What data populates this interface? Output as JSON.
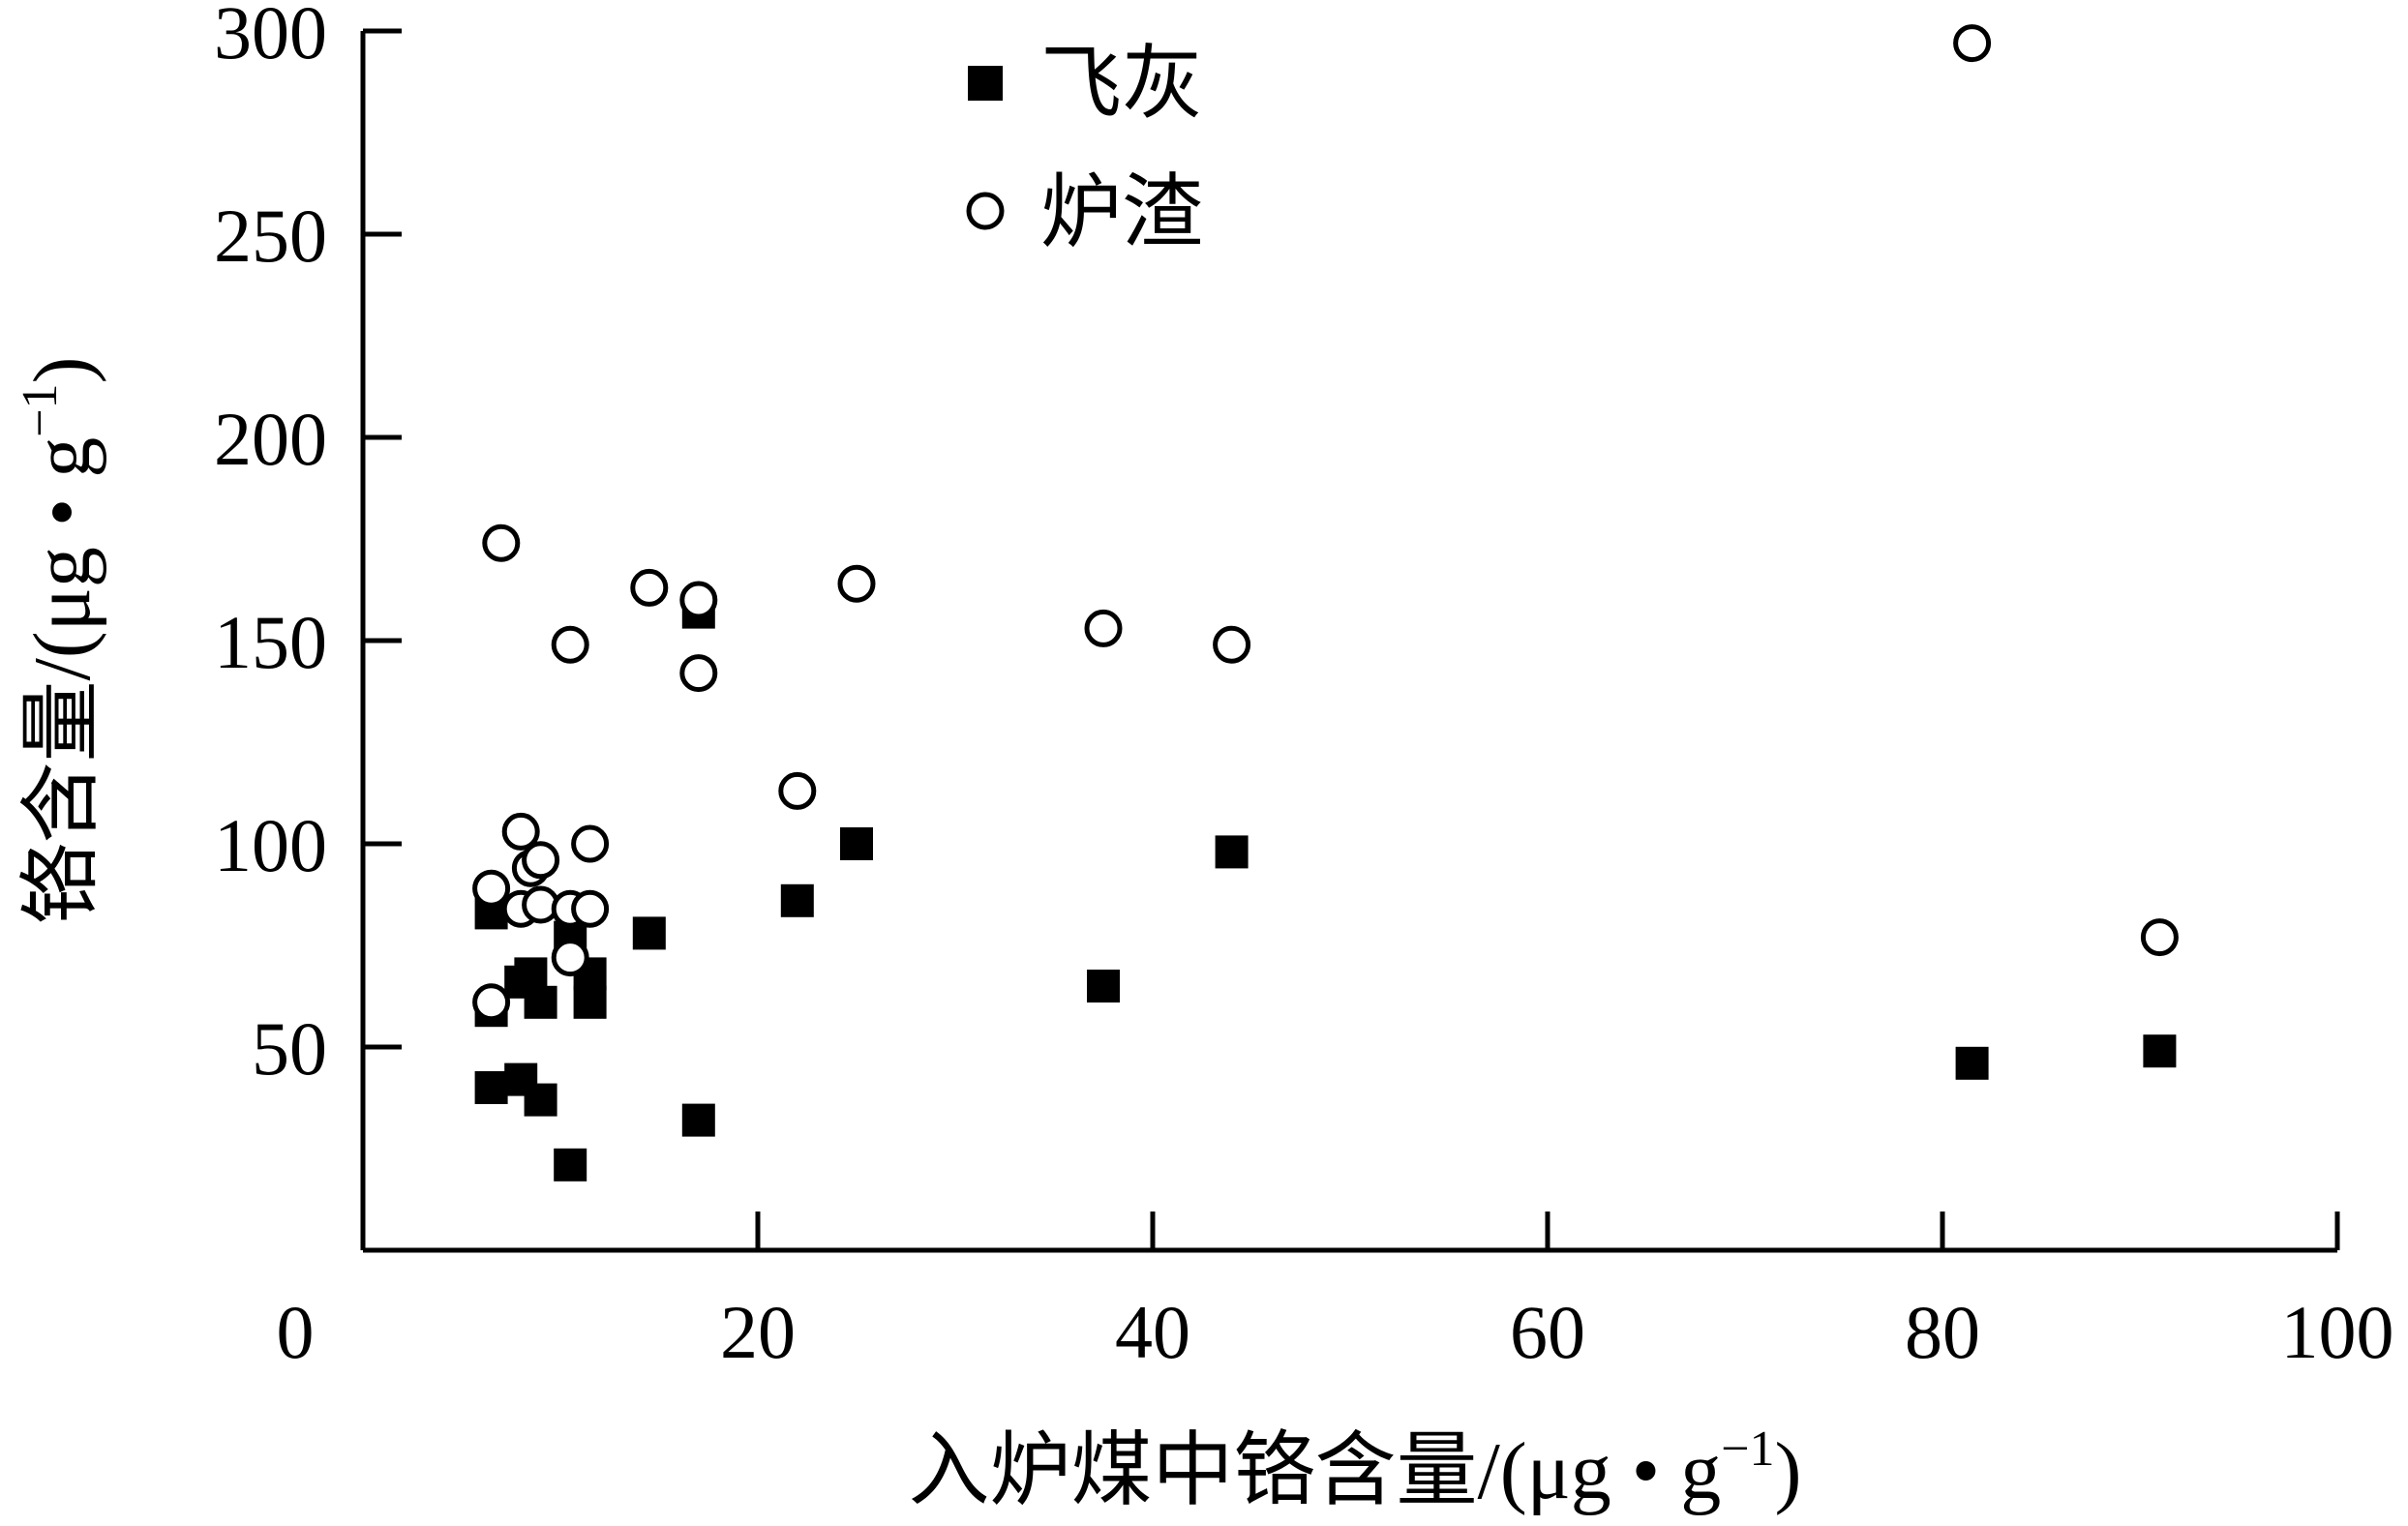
{
  "chart_data": {
    "type": "scatter",
    "xlabel_main": "入炉煤中铬含量/(μg • g",
    "xlabel_sup": "−1",
    "xlabel_end": ")",
    "ylabel_main": "铬含量/(μg • g",
    "ylabel_sup": "−1",
    "ylabel_end": ")",
    "xlim": [
      0,
      100
    ],
    "ylim": [
      0,
      300
    ],
    "x_ticks": [
      20,
      40,
      60,
      80,
      100
    ],
    "y_ticks": [
      50,
      100,
      150,
      200,
      250,
      300
    ],
    "origin_label": "0",
    "grid": false,
    "legend_position": "top",
    "series": [
      {
        "name": "飞灰",
        "marker": "filled-square",
        "color": "#000000",
        "points": [
          [
            6.5,
            59
          ],
          [
            6.5,
            83
          ],
          [
            6.5,
            40
          ],
          [
            8,
            66
          ],
          [
            8,
            42
          ],
          [
            8.5,
            68
          ],
          [
            9,
            61
          ],
          [
            9,
            37
          ],
          [
            10.5,
            77
          ],
          [
            10.5,
            21
          ],
          [
            11.5,
            68
          ],
          [
            11.5,
            61
          ],
          [
            14.5,
            78
          ],
          [
            17,
            157
          ],
          [
            17,
            32
          ],
          [
            22,
            86
          ],
          [
            25,
            100
          ],
          [
            37.5,
            65
          ],
          [
            44,
            98
          ],
          [
            81.5,
            46
          ],
          [
            91,
            49
          ]
        ]
      },
      {
        "name": "炉渣",
        "marker": "open-circle",
        "color": "#000000",
        "points": [
          [
            6.5,
            61
          ],
          [
            6.5,
            89
          ],
          [
            7,
            174
          ],
          [
            8,
            103
          ],
          [
            8,
            84
          ],
          [
            8.5,
            94
          ],
          [
            9,
            96
          ],
          [
            9,
            85
          ],
          [
            10.5,
            149
          ],
          [
            10.5,
            72
          ],
          [
            10.5,
            84
          ],
          [
            11.5,
            84
          ],
          [
            11.5,
            100
          ],
          [
            14.5,
            163
          ],
          [
            17,
            160
          ],
          [
            17,
            142
          ],
          [
            22,
            113
          ],
          [
            25,
            164
          ],
          [
            37.5,
            153
          ],
          [
            44,
            149
          ],
          [
            81.5,
            297
          ],
          [
            91,
            77
          ]
        ]
      }
    ]
  }
}
